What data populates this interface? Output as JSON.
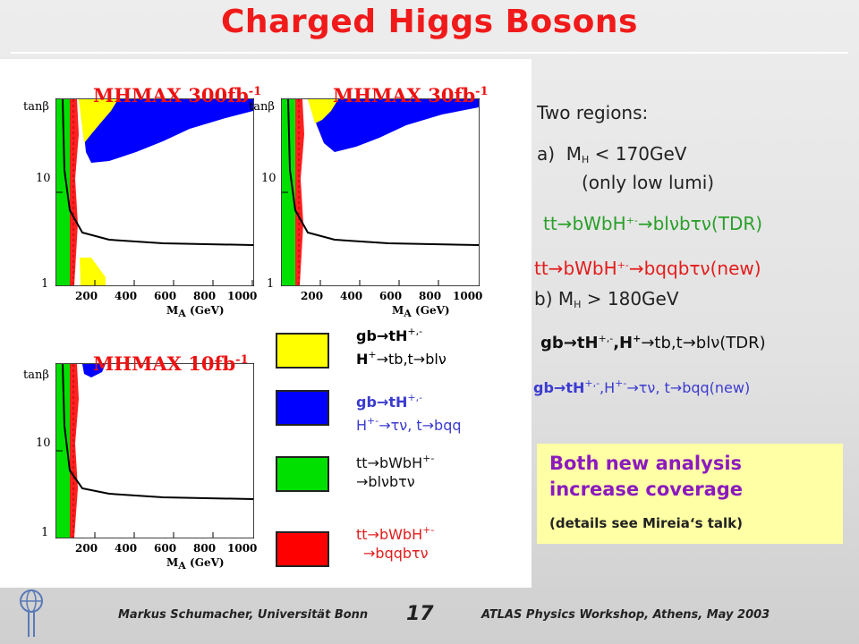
{
  "title": "Charged Higgs Bosons",
  "plots": [
    {
      "title_main": "MHMAX 300fb",
      "title_sup": "-1"
    },
    {
      "title_main": "MHMAX 30fb",
      "title_sup": "-1"
    },
    {
      "title_main": "MHMAX 10fb",
      "title_sup": "-1"
    }
  ],
  "axis": {
    "ylabel": "tanβ",
    "xlabel": "M",
    "xlabel_sub": "A",
    "xlabel_unit": " (GeV)",
    "yticks": [
      "1",
      "10"
    ],
    "xticks": [
      "200",
      "400",
      "600",
      "800",
      "1000"
    ]
  },
  "legend": [
    {
      "color": "#ffff00",
      "line1": "gb→tH",
      "line1_sup": "+,-",
      "line2": "H",
      "line2_sup": "+",
      "line2_rest": "→tb,t→blν",
      "text_color": "#000000"
    },
    {
      "color": "#0000ff",
      "line1": "gb→tH",
      "line1_sup": "+,-",
      "line2": "H",
      "line2_sup": "+-",
      "line2_rest": "→τν, t→bqq",
      "text_color": "#3b3bd0"
    },
    {
      "color": "#00e000",
      "line1": "tt→bWbH",
      "line1_sup": "+-",
      "line2": "→blνbτν",
      "line2_sup": "",
      "line2_rest": "",
      "text_color": "#111111"
    },
    {
      "color": "#ff0000",
      "line1": "tt→bWbH",
      "line1_sup": "+-",
      "line2": "→bqqbτν",
      "line2_sup": "",
      "line2_rest": "",
      "text_color": "#e31c1c"
    }
  ],
  "right": {
    "two_regions": "Two regions:",
    "a_label": "a)",
    "a_mass": "M",
    "a_mass_sub": "H",
    "a_cond": " < 170GeV",
    "a_note": "(only low lumi)",
    "ch1_pre": "tt→bWbH",
    "ch1_sup": "+-",
    "ch1_post": "→blνbτν(TDR)",
    "ch2_pre": "tt→bWbH",
    "ch2_sup": "+-",
    "ch2_post": "→bqqbτν(new)",
    "b_label": "b) M",
    "b_sub": "H",
    "b_cond": " > 180GeV",
    "ch3_pre": "gb→tH",
    "ch3_sup1": "+,-",
    "ch3_mid": ",H",
    "ch3_sup2": "+",
    "ch3_post": "→tb,t→blν(TDR)",
    "ch4_pre": "gb→tH",
    "ch4_sup1": "+,-",
    "ch4_mid": ",H",
    "ch4_sup2": "+-",
    "ch4_post": "→τν, t→bqq(new)"
  },
  "callout": {
    "line1": "Both new analysis",
    "line2": "increase coverage",
    "line3": "(details see Mireia‘s talk)"
  },
  "footer": {
    "left": "Markus Schumacher,  Universität Bonn",
    "page": "17",
    "right": "ATLAS Physics Workshop, Athens, May 2003"
  },
  "colors": {
    "title": "#f11a1a",
    "green": "#00e000",
    "red": "#ff0000",
    "blue": "#0000ff",
    "yellow": "#ffff00",
    "channel_green": "#2aa02a",
    "channel_red": "#e31c1c",
    "channel_blue": "#3b3bd0",
    "callout_bg": "#ffffa5",
    "callout_text": "#8b1abf"
  }
}
